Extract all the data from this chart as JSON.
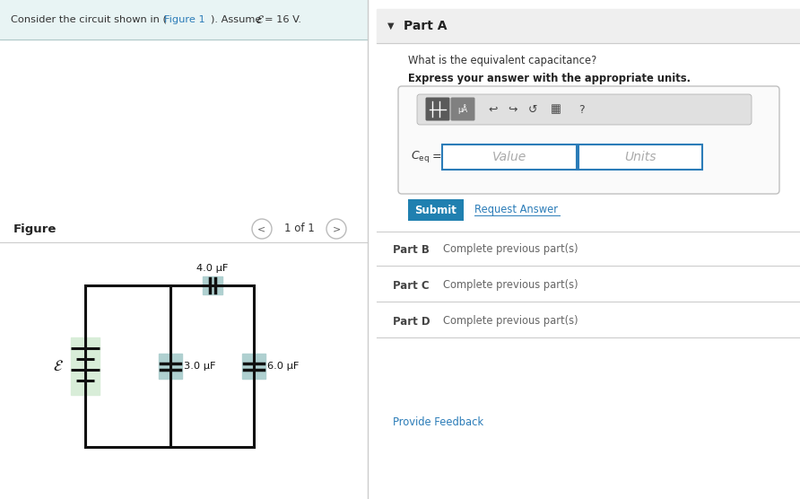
{
  "bg_color": "#ffffff",
  "top_bar_bg": "#e8f4f4",
  "top_bar_link_color": "#2b7cb8",
  "figure_label": "Figure",
  "nav_text": "1 of 1",
  "part_a_header": "Part A",
  "part_a_bg": "#efefef",
  "question_text": "What is the equivalent capacitance?",
  "bold_text": "Express your answer with the appropriate units.",
  "value_placeholder": "Value",
  "units_placeholder": "Units",
  "submit_bg": "#2080b0",
  "submit_text": "Submit",
  "request_answer_text": "Request Answer",
  "request_answer_color": "#2b7cb8",
  "part_b_label": "Part B",
  "part_b_text": "Complete previous part(s)",
  "part_c_label": "Part C",
  "part_c_text": "Complete previous part(s)",
  "part_d_label": "Part D",
  "part_d_text": "Complete previous part(s)",
  "provide_feedback_text": "Provide Feedback",
  "provide_feedback_color": "#2b7cb8",
  "divider_color": "#cccccc",
  "circuit_line_color": "#111111",
  "capacitor_fill": "#afd0d0",
  "battery_fill": "#d8edd8",
  "cap_4uF_label": "4.0 μF",
  "cap_3uF_label": "3.0 μF",
  "cap_6uF_label": "6.0 μF",
  "input_border_color": "#2b7cb8",
  "toolbar_bg": "#e0e0e0",
  "icon1_bg": "#666666",
  "icon2_bg": "#888888"
}
